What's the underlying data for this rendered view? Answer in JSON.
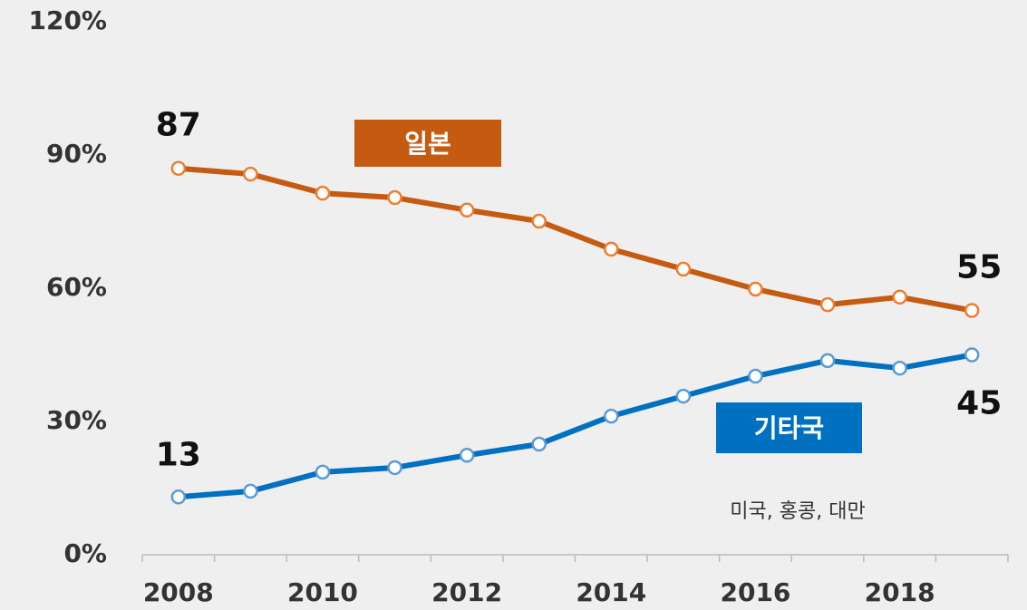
{
  "chart_data": {
    "type": "line",
    "categories": [
      "2008",
      null,
      "2010",
      null,
      "2012",
      null,
      "2014",
      null,
      "2016",
      null,
      "2018",
      null
    ],
    "series": [
      {
        "name": "일본",
        "color": "#c55a11",
        "marker_color": "#ed7d31",
        "values": [
          87,
          85.7,
          81.4,
          80.4,
          77.6,
          75.1,
          68.8,
          64.3,
          59.8,
          56.3,
          58.0,
          55
        ],
        "value_labels": [
          "87",
          null,
          null,
          null,
          null,
          null,
          null,
          null,
          null,
          null,
          null,
          "55"
        ]
      },
      {
        "name": "기타국",
        "color": "#0070c0",
        "marker_color": "#5b9bd5",
        "values": [
          13,
          14.3,
          18.6,
          19.6,
          22.4,
          24.9,
          31.2,
          35.7,
          40.2,
          43.7,
          42.0,
          45
        ],
        "value_labels": [
          "13",
          null,
          null,
          null,
          null,
          null,
          null,
          null,
          null,
          null,
          null,
          "45"
        ]
      }
    ],
    "annotations": [
      "미국, 홍콩, 대만"
    ],
    "ylim": [
      0,
      120
    ],
    "yticks": [
      {
        "value": 0,
        "label": "0%"
      },
      {
        "value": 30,
        "label": "30%"
      },
      {
        "value": 60,
        "label": "60%"
      },
      {
        "value": 90,
        "label": "90%"
      },
      {
        "value": 120,
        "label": "120%"
      }
    ],
    "grid": false
  }
}
